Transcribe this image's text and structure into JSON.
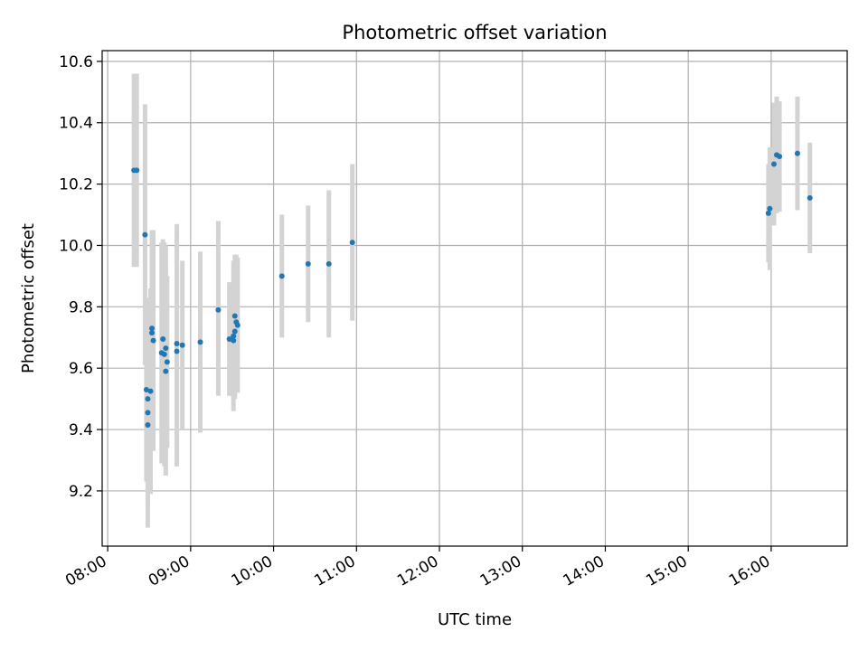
{
  "chart_data": {
    "type": "scatter",
    "title": "Photometric offset variation",
    "xlabel": "UTC time",
    "ylabel": "Photometric offset",
    "xaxis_type": "time",
    "xlim": [
      "07:56",
      "16:55"
    ],
    "ylim": [
      9.02,
      10.635
    ],
    "grid": true,
    "x_ticks": [
      "08:00",
      "09:00",
      "10:00",
      "11:00",
      "12:00",
      "13:00",
      "14:00",
      "15:00",
      "16:00"
    ],
    "y_ticks": [
      "9.2",
      "9.4",
      "9.6",
      "9.8",
      "10.0",
      "10.2",
      "10.4",
      "10.6"
    ],
    "point_color": "#1f77b4",
    "error_color": "#d3d3d3",
    "series": [
      {
        "points": [
          {
            "x": "08:19",
            "y": 10.245,
            "lo": 9.93,
            "hi": 10.56
          },
          {
            "x": "08:21",
            "y": 10.245,
            "lo": 9.93,
            "hi": 10.56
          },
          {
            "x": "08:27",
            "y": 10.035,
            "lo": 9.61,
            "hi": 10.46
          },
          {
            "x": "08:28",
            "y": 9.53,
            "lo": 9.23,
            "hi": 9.83
          },
          {
            "x": "08:29",
            "y": 9.455,
            "lo": 9.15,
            "hi": 9.76
          },
          {
            "x": "08:29",
            "y": 9.5,
            "lo": 9.2,
            "hi": 9.8
          },
          {
            "x": "08:29",
            "y": 9.415,
            "lo": 9.08,
            "hi": 9.75
          },
          {
            "x": "08:31",
            "y": 9.525,
            "lo": 9.19,
            "hi": 9.86
          },
          {
            "x": "08:32",
            "y": 9.73,
            "lo": 9.4,
            "hi": 10.05
          },
          {
            "x": "08:32",
            "y": 9.715,
            "lo": 9.39,
            "hi": 10.04
          },
          {
            "x": "08:33",
            "y": 9.69,
            "lo": 9.33,
            "hi": 10.05
          },
          {
            "x": "08:39",
            "y": 9.65,
            "lo": 9.29,
            "hi": 10.01
          },
          {
            "x": "08:40",
            "y": 9.695,
            "lo": 9.37,
            "hi": 10.02
          },
          {
            "x": "08:41",
            "y": 9.645,
            "lo": 9.28,
            "hi": 10.01
          },
          {
            "x": "08:42",
            "y": 9.665,
            "lo": 9.33,
            "hi": 10.0
          },
          {
            "x": "08:42",
            "y": 9.59,
            "lo": 9.25,
            "hi": 9.93
          },
          {
            "x": "08:43",
            "y": 9.62,
            "lo": 9.34,
            "hi": 9.9
          },
          {
            "x": "08:50",
            "y": 9.68,
            "lo": 9.28,
            "hi": 10.07
          },
          {
            "x": "08:50",
            "y": 9.655,
            "lo": 9.28,
            "hi": 10.03
          },
          {
            "x": "08:54",
            "y": 9.675,
            "lo": 9.4,
            "hi": 9.95
          },
          {
            "x": "09:07",
            "y": 9.685,
            "lo": 9.39,
            "hi": 9.98
          },
          {
            "x": "09:20",
            "y": 9.79,
            "lo": 9.51,
            "hi": 10.08
          },
          {
            "x": "09:28",
            "y": 9.695,
            "lo": 9.51,
            "hi": 9.88
          },
          {
            "x": "09:31",
            "y": 9.69,
            "lo": 9.5,
            "hi": 9.88
          },
          {
            "x": "09:31",
            "y": 9.705,
            "lo": 9.46,
            "hi": 9.95
          },
          {
            "x": "09:32",
            "y": 9.72,
            "lo": 9.5,
            "hi": 9.94
          },
          {
            "x": "09:32",
            "y": 9.77,
            "lo": 9.55,
            "hi": 9.97
          },
          {
            "x": "09:33",
            "y": 9.75,
            "lo": 9.53,
            "hi": 9.97
          },
          {
            "x": "09:34",
            "y": 9.74,
            "lo": 9.52,
            "hi": 9.96
          },
          {
            "x": "10:06",
            "y": 9.9,
            "lo": 9.7,
            "hi": 10.1
          },
          {
            "x": "10:25",
            "y": 9.94,
            "lo": 9.75,
            "hi": 10.13
          },
          {
            "x": "10:40",
            "y": 9.94,
            "lo": 9.7,
            "hi": 10.18
          },
          {
            "x": "10:57",
            "y": 10.01,
            "lo": 9.755,
            "hi": 10.265
          },
          {
            "x": "15:58",
            "y": 10.105,
            "lo": 9.945,
            "hi": 10.265
          },
          {
            "x": "15:59",
            "y": 10.12,
            "lo": 9.92,
            "hi": 10.32
          },
          {
            "x": "16:02",
            "y": 10.265,
            "lo": 10.065,
            "hi": 10.465
          },
          {
            "x": "16:04",
            "y": 10.295,
            "lo": 10.105,
            "hi": 10.485
          },
          {
            "x": "16:06",
            "y": 10.29,
            "lo": 10.11,
            "hi": 10.47
          },
          {
            "x": "16:19",
            "y": 10.3,
            "lo": 10.115,
            "hi": 10.485
          },
          {
            "x": "16:28",
            "y": 10.155,
            "lo": 9.975,
            "hi": 10.335
          }
        ]
      }
    ]
  }
}
